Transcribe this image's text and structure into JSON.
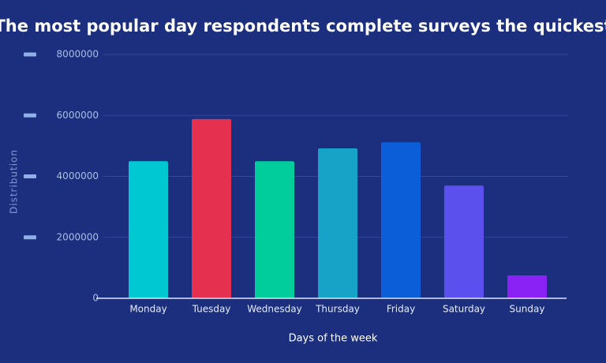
{
  "chart_data": {
    "type": "bar",
    "title": "The most popular day respondents complete surveys the quickest",
    "x_label": "Days of the week",
    "y_label": "Distribution",
    "categories": [
      "Monday",
      "Tuesday",
      "Wednesday",
      "Thursday",
      "Friday",
      "Saturday",
      "Sunday"
    ],
    "values": [
      4500000,
      5880000,
      4500000,
      4920000,
      5120000,
      3700000,
      750000
    ],
    "colors": [
      "#00c8d2",
      "#e5304f",
      "#00cc9c",
      "#17a3c7",
      "#0b5ed7",
      "#5b50ee",
      "#8a22f5"
    ],
    "ylim": [
      0,
      8000000
    ],
    "yticks": [
      0,
      2000000,
      4000000,
      6000000,
      8000000
    ],
    "grid": true
  }
}
